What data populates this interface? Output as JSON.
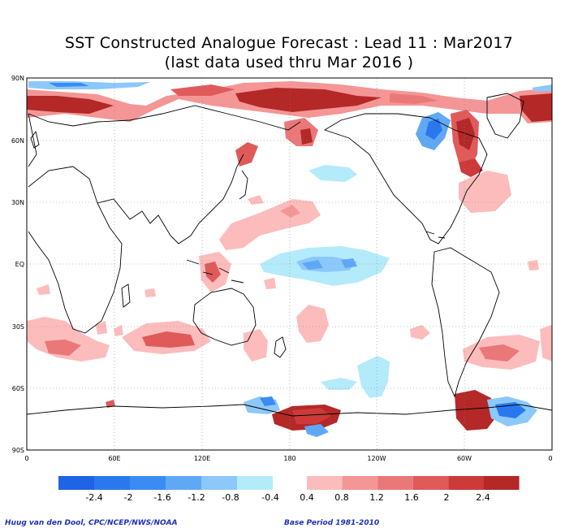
{
  "title": {
    "line1": "SST Constructed Analogue Forecast : Lead 11 : Mar2017",
    "line2": "(last data used thru Mar 2016 )"
  },
  "axes": {
    "lat_labels": [
      "90N",
      "60N",
      "30N",
      "EQ",
      "30S",
      "60S",
      "90S"
    ],
    "lon_labels": [
      "0",
      "60E",
      "120E",
      "180",
      "120W",
      "60W",
      "0"
    ]
  },
  "colorbar": {
    "labels": [
      "-2.4",
      "-2",
      "-1.6",
      "-1.2",
      "-0.8",
      "-0.4",
      "0.4",
      "0.8",
      "1.2",
      "1.6",
      "2",
      "2.4"
    ],
    "negative_colors": [
      "#1e64e6",
      "#2a78ee",
      "#3a8cf2",
      "#5fa8f5",
      "#8cc8fa",
      "#b4ebfa"
    ],
    "positive_colors": [
      "#fcbcbc",
      "#f49696",
      "#ea7878",
      "#e05a5a",
      "#cc3a3a",
      "#b42828"
    ]
  },
  "credits": {
    "left": "Huug van den Dool, CPC/NCEP/NWS/NOAA",
    "right": "Base Period 1981-2010"
  }
}
